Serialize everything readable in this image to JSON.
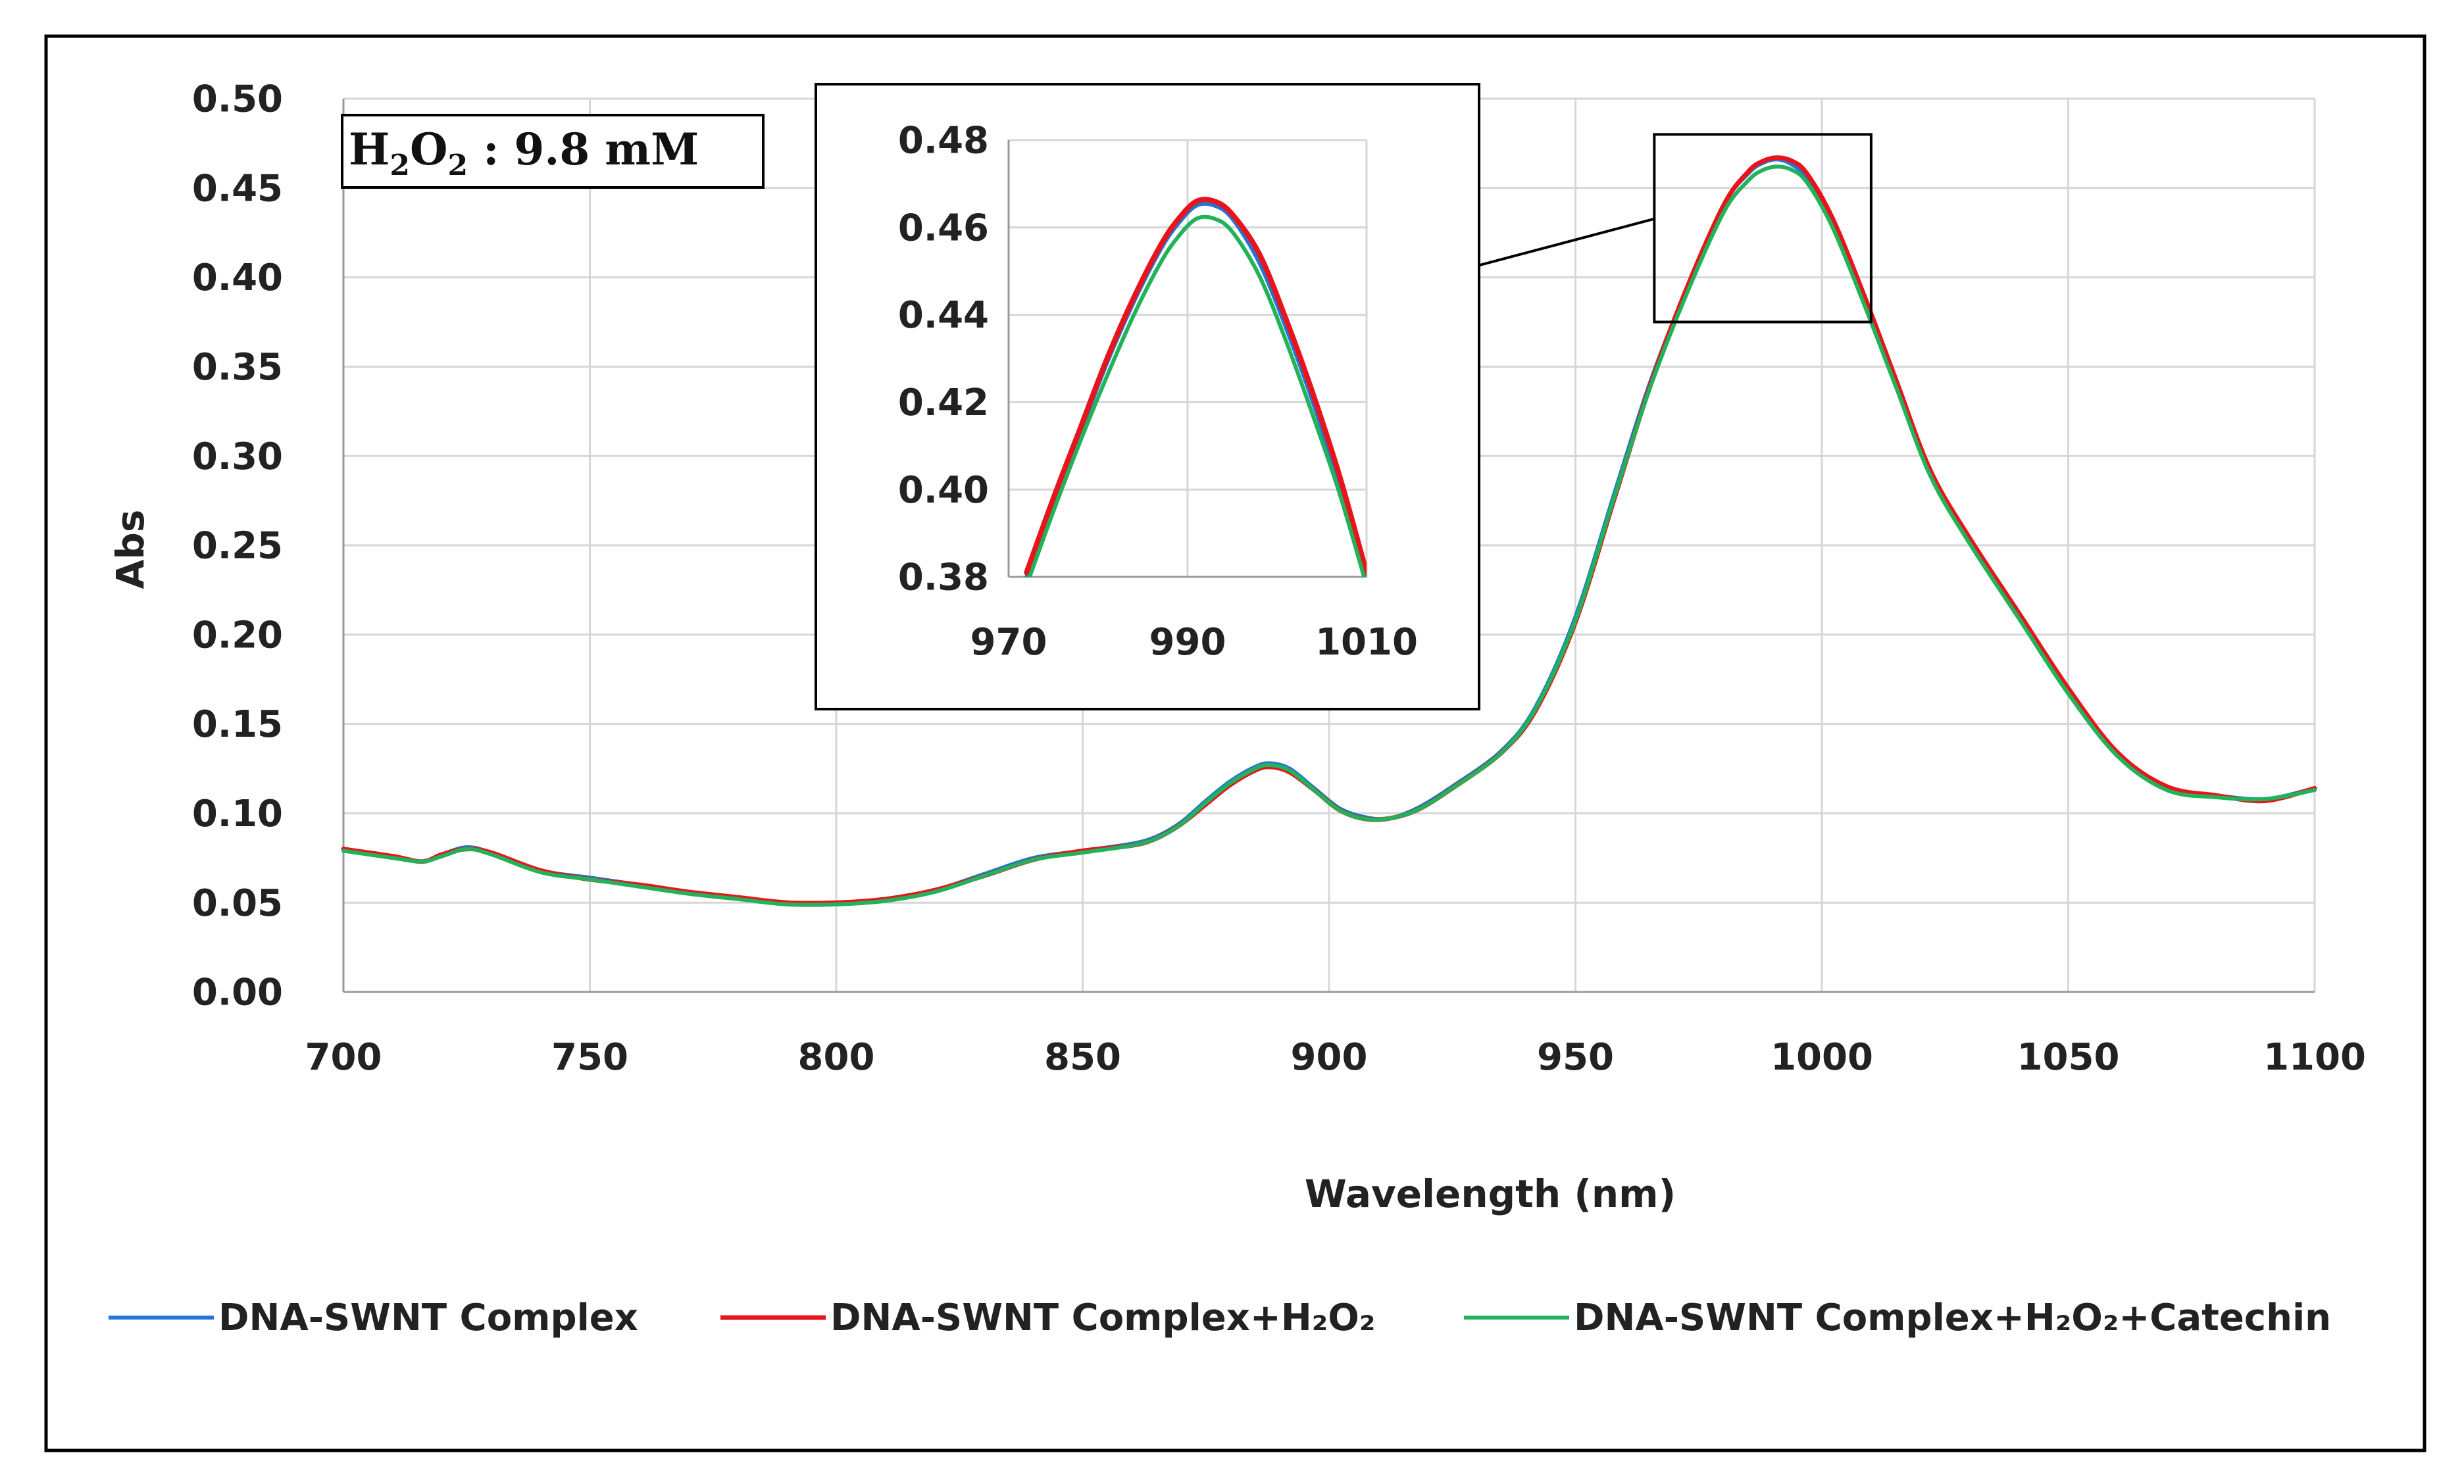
{
  "chart_data": [
    {
      "id": "main",
      "type": "line",
      "title": "",
      "xlabel": "Wavelength (nm)",
      "ylabel": "Abs",
      "xlim": [
        700,
        1100
      ],
      "ylim": [
        0,
        0.5
      ],
      "xticks": [
        700,
        750,
        800,
        850,
        900,
        950,
        1000,
        1050,
        1100
      ],
      "xtick_labels": [
        "700",
        "750",
        "800",
        "850",
        "900",
        "950",
        "1000",
        "1050",
        "1100"
      ],
      "yticks": [
        0,
        0.05,
        0.1,
        0.15,
        0.2,
        0.25,
        0.3,
        0.35,
        0.4,
        0.45,
        0.5
      ],
      "ytick_labels": [
        "0.00",
        "0.05",
        "0.10",
        "0.15",
        "0.20",
        "0.25",
        "0.30",
        "0.35",
        "0.40",
        "0.45",
        "0.50"
      ],
      "grid": true,
      "legend_position": "bottom",
      "annotation": {
        "text_main": "H",
        "sub1": "2",
        "text_mid": "O",
        "sub2": "2",
        "text_rest": " : 9.8 mM"
      },
      "series": [
        {
          "name": "DNA-SWNT Complex",
          "color": "#1f77d4",
          "x": [
            700,
            710,
            716,
            720,
            725,
            730,
            740,
            750,
            760,
            770,
            780,
            790,
            800,
            810,
            820,
            830,
            840,
            850,
            860,
            865,
            870,
            875,
            880,
            885,
            888,
            892,
            897,
            902,
            907,
            912,
            918,
            925,
            935,
            942,
            950,
            958,
            965,
            972,
            980,
            985,
            988,
            991,
            994,
            997,
            1002,
            1008,
            1015,
            1022,
            1030,
            1040,
            1050,
            1060,
            1070,
            1080,
            1090,
            1100
          ],
          "y": [
            0.08,
            0.076,
            0.073,
            0.077,
            0.081,
            0.078,
            0.068,
            0.064,
            0.06,
            0.056,
            0.053,
            0.05,
            0.05,
            0.052,
            0.057,
            0.066,
            0.075,
            0.079,
            0.083,
            0.087,
            0.095,
            0.107,
            0.118,
            0.126,
            0.128,
            0.125,
            0.114,
            0.103,
            0.098,
            0.097,
            0.103,
            0.115,
            0.135,
            0.16,
            0.21,
            0.28,
            0.34,
            0.39,
            0.44,
            0.458,
            0.464,
            0.466,
            0.463,
            0.455,
            0.43,
            0.39,
            0.34,
            0.29,
            0.252,
            0.21,
            0.168,
            0.133,
            0.114,
            0.11,
            0.108,
            0.114
          ]
        },
        {
          "name": "DNA-SWNT Complex+H₂O₂",
          "color": "#e8141c",
          "x": [
            700,
            710,
            716,
            720,
            725,
            730,
            740,
            750,
            760,
            770,
            780,
            790,
            800,
            810,
            820,
            830,
            840,
            850,
            860,
            865,
            870,
            875,
            880,
            885,
            888,
            892,
            897,
            902,
            907,
            912,
            918,
            925,
            935,
            942,
            950,
            958,
            965,
            972,
            980,
            985,
            988,
            991,
            994,
            997,
            1002,
            1008,
            1015,
            1022,
            1030,
            1040,
            1050,
            1060,
            1070,
            1080,
            1090,
            1100
          ],
          "y": [
            0.08,
            0.076,
            0.073,
            0.077,
            0.08,
            0.078,
            0.068,
            0.063,
            0.06,
            0.056,
            0.053,
            0.05,
            0.05,
            0.052,
            0.057,
            0.065,
            0.074,
            0.079,
            0.082,
            0.086,
            0.094,
            0.105,
            0.116,
            0.124,
            0.126,
            0.123,
            0.113,
            0.102,
            0.097,
            0.097,
            0.102,
            0.114,
            0.134,
            0.158,
            0.207,
            0.277,
            0.338,
            0.39,
            0.44,
            0.459,
            0.465,
            0.467,
            0.465,
            0.458,
            0.434,
            0.394,
            0.343,
            0.292,
            0.254,
            0.212,
            0.17,
            0.134,
            0.115,
            0.11,
            0.107,
            0.114
          ]
        },
        {
          "name": "DNA-SWNT Complex+H₂O₂+Catechin",
          "color": "#22b25a",
          "x": [
            700,
            710,
            716,
            720,
            725,
            730,
            740,
            750,
            760,
            770,
            780,
            790,
            800,
            810,
            820,
            830,
            840,
            850,
            860,
            865,
            870,
            875,
            880,
            885,
            888,
            892,
            897,
            902,
            907,
            912,
            918,
            925,
            935,
            942,
            950,
            958,
            965,
            972,
            980,
            985,
            988,
            991,
            994,
            997,
            1002,
            1008,
            1015,
            1022,
            1030,
            1040,
            1050,
            1060,
            1070,
            1080,
            1090,
            1100
          ],
          "y": [
            0.079,
            0.075,
            0.073,
            0.076,
            0.08,
            0.077,
            0.067,
            0.063,
            0.059,
            0.055,
            0.052,
            0.049,
            0.049,
            0.051,
            0.056,
            0.065,
            0.074,
            0.078,
            0.082,
            0.086,
            0.094,
            0.106,
            0.117,
            0.125,
            0.127,
            0.124,
            0.113,
            0.102,
            0.097,
            0.097,
            0.102,
            0.114,
            0.134,
            0.159,
            0.208,
            0.278,
            0.337,
            0.387,
            0.436,
            0.454,
            0.46,
            0.462,
            0.46,
            0.453,
            0.429,
            0.389,
            0.339,
            0.289,
            0.251,
            0.209,
            0.167,
            0.132,
            0.113,
            0.109,
            0.108,
            0.113
          ]
        }
      ]
    },
    {
      "id": "inset",
      "type": "line",
      "title": "",
      "xlabel": "",
      "ylabel": "",
      "xlim": [
        970,
        1010
      ],
      "ylim": [
        0.38,
        0.48
      ],
      "xticks": [
        970,
        990,
        1010
      ],
      "xtick_labels": [
        "970",
        "990",
        "1010"
      ],
      "yticks": [
        0.38,
        0.4,
        0.42,
        0.44,
        0.46,
        0.48
      ],
      "ytick_labels": [
        "0.38",
        "0.40",
        "0.42",
        "0.44",
        "0.46",
        "0.48"
      ],
      "grid": true,
      "zoom_region": {
        "x": [
          966,
          1010
        ],
        "y": [
          0.375,
          0.48
        ]
      },
      "series": [
        {
          "name": "DNA-SWNT Complex",
          "color": "#1f77d4",
          "x": [
            972,
            975,
            978,
            981,
            984,
            987,
            989,
            991,
            993,
            995,
            998,
            1001,
            1004,
            1007,
            1010
          ],
          "y": [
            0.38,
            0.397,
            0.413,
            0.429,
            0.443,
            0.455,
            0.461,
            0.465,
            0.465,
            0.462,
            0.452,
            0.437,
            0.42,
            0.401,
            0.38
          ]
        },
        {
          "name": "DNA-SWNT Complex+H₂O₂",
          "color": "#e8141c",
          "x": [
            972,
            975,
            978,
            981,
            984,
            987,
            989,
            991,
            993,
            995,
            998,
            1001,
            1004,
            1007,
            1010
          ],
          "y": [
            0.381,
            0.398,
            0.414,
            0.43,
            0.444,
            0.456,
            0.462,
            0.466,
            0.466,
            0.463,
            0.454,
            0.439,
            0.422,
            0.403,
            0.381
          ]
        },
        {
          "name": "DNA-SWNT Complex+H₂O₂+Catechin",
          "color": "#22b25a",
          "x": [
            972,
            975,
            978,
            981,
            984,
            987,
            989,
            991,
            993,
            995,
            998,
            1001,
            1004,
            1007,
            1010
          ],
          "y": [
            0.378,
            0.395,
            0.411,
            0.426,
            0.44,
            0.452,
            0.458,
            0.462,
            0.462,
            0.459,
            0.449,
            0.434,
            0.417,
            0.399,
            0.378
          ]
        }
      ]
    }
  ]
}
